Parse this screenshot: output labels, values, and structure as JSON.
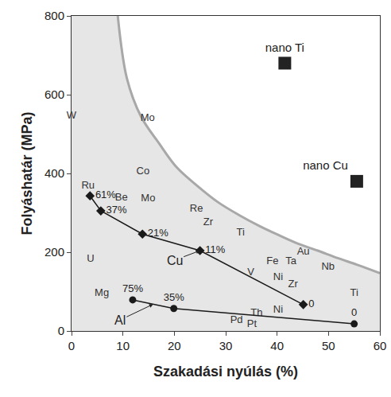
{
  "chart_data": {
    "type": "scatter",
    "xlabel": "Szakadási nyúlás (%)",
    "ylabel": "Folyáshatár (MPa)",
    "xlim": [
      0,
      60
    ],
    "ylim": [
      0,
      800
    ],
    "xticks": [
      0,
      10,
      20,
      30,
      40,
      50,
      60
    ],
    "yticks": [
      0,
      200,
      400,
      600,
      800
    ],
    "grid": false,
    "region": {
      "x": [
        9,
        10.8,
        13.5,
        17,
        20.5,
        24.7,
        28.5,
        32.5,
        36.5,
        40.2,
        44,
        47.9,
        51.8,
        55.6,
        60
      ],
      "y": [
        800,
        640,
        545,
        477,
        415,
        366,
        327,
        295,
        267,
        244,
        222,
        204,
        185,
        168,
        147
      ],
      "color": "#e6e6e6"
    },
    "series": [
      {
        "name": "Cu",
        "color": "#1a1a1a",
        "marker": "diamond",
        "line_style": "solid",
        "x": [
          3.6,
          5.7,
          13.8,
          25,
          45.1
        ],
        "values": [
          343,
          305,
          246,
          204,
          67
        ],
        "point_labels": [
          "61%",
          "37%",
          "21%",
          "11%",
          "0"
        ]
      },
      {
        "name": "Al",
        "color": "#1a1a1a",
        "marker": "circle",
        "line_style": "solid",
        "x": [
          11.9,
          19.9,
          55
        ],
        "values": [
          79,
          57,
          18
        ],
        "point_labels": [
          "75%",
          "35%",
          "0"
        ]
      }
    ],
    "points": [
      {
        "label": "nano Ti",
        "x": 41.5,
        "y": 680,
        "marker": "square",
        "color": "#222222"
      },
      {
        "label": "nano Cu",
        "x": 55.5,
        "y": 380,
        "marker": "square",
        "color": "#222222"
      }
    ],
    "element_labels": [
      {
        "text": "W",
        "x": 0,
        "y": 545
      },
      {
        "text": "Mo",
        "x": 14.8,
        "y": 539
      },
      {
        "text": "Co",
        "x": 13.9,
        "y": 404
      },
      {
        "text": "Be",
        "x": 9.7,
        "y": 337
      },
      {
        "text": "Mo",
        "x": 14.9,
        "y": 335
      },
      {
        "text": "Ru",
        "x": 3.2,
        "y": 368
      },
      {
        "text": "Re",
        "x": 24.3,
        "y": 309
      },
      {
        "text": "Zr",
        "x": 26.6,
        "y": 275
      },
      {
        "text": "Ti",
        "x": 32.9,
        "y": 250
      },
      {
        "text": "U",
        "x": 3.7,
        "y": 182
      },
      {
        "text": "Mg",
        "x": 5.9,
        "y": 95
      },
      {
        "text": "Au",
        "x": 45.1,
        "y": 200
      },
      {
        "text": "Fe",
        "x": 39.1,
        "y": 176
      },
      {
        "text": "Ta",
        "x": 42.7,
        "y": 176
      },
      {
        "text": "Nb",
        "x": 49.9,
        "y": 162
      },
      {
        "text": "Ni",
        "x": 40.2,
        "y": 135
      },
      {
        "text": "V",
        "x": 34.9,
        "y": 147
      },
      {
        "text": "Zr",
        "x": 43.1,
        "y": 117
      },
      {
        "text": "Ti",
        "x": 55,
        "y": 95
      },
      {
        "text": "Th",
        "x": 36,
        "y": 44
      },
      {
        "text": "Ni",
        "x": 40.2,
        "y": 53
      },
      {
        "text": "Pd",
        "x": 32.1,
        "y": 26
      },
      {
        "text": "Pt",
        "x": 35.1,
        "y": 16
      }
    ]
  }
}
